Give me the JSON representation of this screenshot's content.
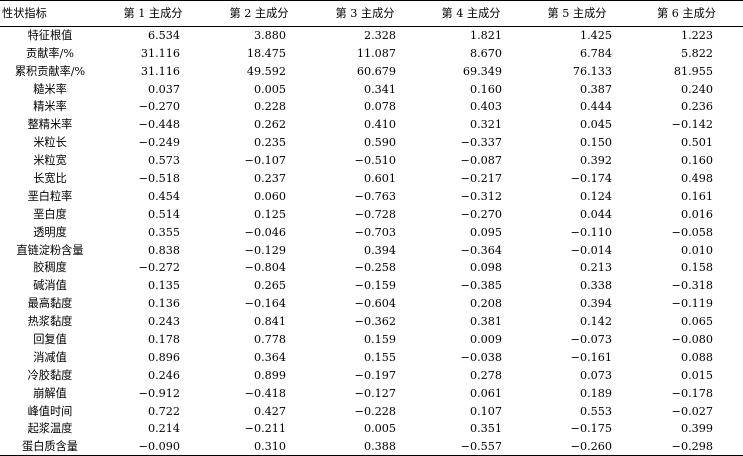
{
  "table": {
    "headers": [
      "性状指标",
      "第 1 主成分",
      "第 2 主成分",
      "第 3 主成分",
      "第 4 主成分",
      "第 5 主成分",
      "第 6 主成分"
    ],
    "rows": [
      {
        "label": "特征根值",
        "values": [
          "6.534",
          "3.880",
          "2.328",
          "1.821",
          "1.425",
          "1.223"
        ]
      },
      {
        "label": "贡献率/%",
        "values": [
          "31.116",
          "18.475",
          "11.087",
          "8.670",
          "6.784",
          "5.822"
        ]
      },
      {
        "label": "累积贡献率/%",
        "values": [
          "31.116",
          "49.592",
          "60.679",
          "69.349",
          "76.133",
          "81.955"
        ]
      },
      {
        "label": "糙米率",
        "values": [
          "0.037",
          "0.005",
          "0.341",
          "0.160",
          "0.387",
          "0.240"
        ]
      },
      {
        "label": "精米率",
        "values": [
          "−0.270",
          "0.228",
          "0.078",
          "0.403",
          "0.444",
          "0.236"
        ]
      },
      {
        "label": "整精米率",
        "values": [
          "−0.448",
          "0.262",
          "0.410",
          "0.321",
          "0.045",
          "−0.142"
        ]
      },
      {
        "label": "米粒长",
        "values": [
          "−0.249",
          "0.235",
          "0.590",
          "−0.337",
          "0.150",
          "0.501"
        ]
      },
      {
        "label": "米粒宽",
        "values": [
          "0.573",
          "−0.107",
          "−0.510",
          "−0.087",
          "0.392",
          "0.160"
        ]
      },
      {
        "label": "长宽比",
        "values": [
          "−0.518",
          "0.237",
          "0.601",
          "−0.217",
          "−0.174",
          "0.498"
        ]
      },
      {
        "label": "垩白粒率",
        "values": [
          "0.454",
          "0.060",
          "−0.763",
          "−0.312",
          "0.124",
          "0.161"
        ]
      },
      {
        "label": "垩白度",
        "values": [
          "0.514",
          "0.125",
          "−0.728",
          "−0.270",
          "0.044",
          "0.016"
        ]
      },
      {
        "label": "透明度",
        "values": [
          "0.355",
          "−0.046",
          "−0.703",
          "0.095",
          "−0.110",
          "−0.058"
        ]
      },
      {
        "label": "直链淀粉含量",
        "values": [
          "0.838",
          "−0.129",
          "0.394",
          "−0.364",
          "−0.014",
          "0.010"
        ]
      },
      {
        "label": "胶稠度",
        "values": [
          "−0.272",
          "−0.804",
          "−0.258",
          "0.098",
          "0.213",
          "0.158"
        ]
      },
      {
        "label": "碱消值",
        "values": [
          "0.135",
          "0.265",
          "−0.159",
          "−0.385",
          "0.338",
          "−0.318"
        ]
      },
      {
        "label": "最高黏度",
        "values": [
          "0.136",
          "−0.164",
          "−0.604",
          "0.208",
          "0.394",
          "−0.119"
        ]
      },
      {
        "label": "热浆黏度",
        "values": [
          "0.243",
          "0.841",
          "−0.362",
          "0.381",
          "0.142",
          "0.065"
        ]
      },
      {
        "label": "回复值",
        "values": [
          "0.178",
          "0.778",
          "0.159",
          "0.009",
          "−0.073",
          "−0.080"
        ]
      },
      {
        "label": "消减值",
        "values": [
          "0.896",
          "0.364",
          "0.155",
          "−0.038",
          "−0.161",
          "0.088"
        ]
      },
      {
        "label": "冷胶黏度",
        "values": [
          "0.246",
          "0.899",
          "−0.197",
          "0.278",
          "0.073",
          "0.015"
        ]
      },
      {
        "label": "崩解值",
        "values": [
          "−0.912",
          "−0.418",
          "−0.127",
          "0.061",
          "0.189",
          "−0.178"
        ]
      },
      {
        "label": "峰值时间",
        "values": [
          "0.722",
          "0.427",
          "−0.228",
          "0.107",
          "0.553",
          "−0.027"
        ]
      },
      {
        "label": "起浆温度",
        "values": [
          "0.214",
          "−0.211",
          "0.005",
          "0.351",
          "−0.175",
          "0.399"
        ]
      },
      {
        "label": "蛋白质含量",
        "values": [
          "−0.090",
          "0.310",
          "0.388",
          "−0.557",
          "−0.260",
          "−0.298"
        ]
      }
    ]
  }
}
